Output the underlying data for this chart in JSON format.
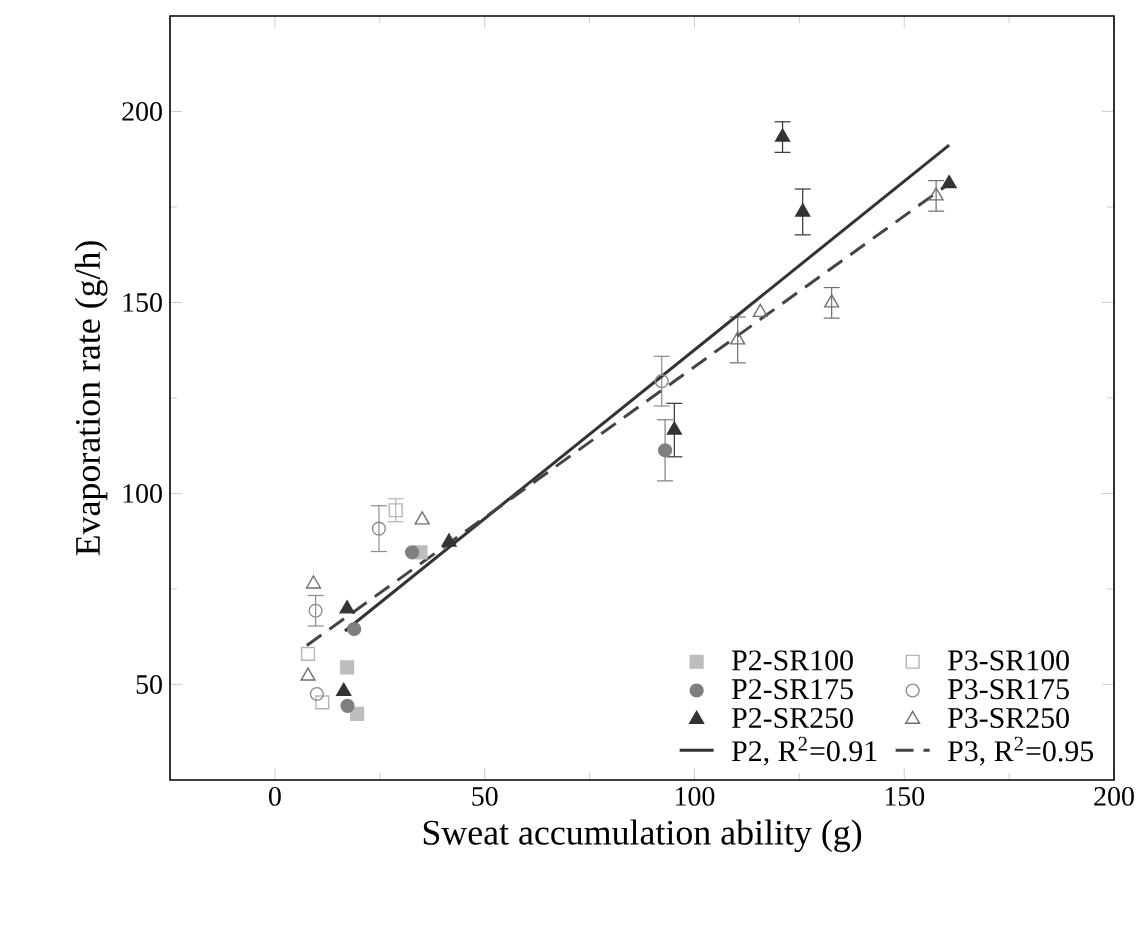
{
  "chart_data": {
    "type": "scatter",
    "xlabel": "Sweat accumulation ability (g)",
    "ylabel": "Evaporation rate (g/h)",
    "xlim": [
      -25,
      200
    ],
    "ylim": [
      25,
      225
    ],
    "xticks": [
      0,
      50,
      100,
      150,
      200
    ],
    "yticks": [
      50,
      100,
      150,
      200
    ],
    "grid": false,
    "legend": "bottom right",
    "series": [
      {
        "name": "P2-SR100",
        "color": "#bdbdbd",
        "marker": "square",
        "x": [
          17.2,
          19.6,
          34.7
        ],
        "values": [
          54.5,
          42.3,
          84.6
        ]
      },
      {
        "name": "P3-SR100",
        "color": "#b5b5b5",
        "marker": "square-open",
        "x": [
          7.9,
          11.3,
          28.8
        ],
        "values": [
          58.0,
          45.3,
          95.6
        ],
        "errors": [
          null,
          null,
          3
        ]
      },
      {
        "name": "P2-SR175",
        "color": "#7f7f7f",
        "marker": "circle",
        "x": [
          17.3,
          18.9,
          32.7,
          93.0
        ],
        "values": [
          44.4,
          64.5,
          84.6,
          111.3
        ],
        "errors": [
          null,
          null,
          null,
          8
        ]
      },
      {
        "name": "P3-SR175",
        "color": "#8c8c8c",
        "marker": "circle-open",
        "x": [
          10.0,
          9.7,
          24.8,
          92.2
        ],
        "values": [
          47.5,
          69.3,
          90.8,
          129.4
        ],
        "errors": [
          null,
          4,
          6,
          6.5
        ]
      },
      {
        "name": "P2-SR250",
        "color": "#333333",
        "marker": "triangle",
        "x": [
          16.4,
          17.2,
          41.5,
          95.2,
          121.0,
          125.8,
          160.7
        ],
        "values": [
          48.2,
          69.8,
          87.3,
          116.6,
          193.3,
          173.7,
          181.1
        ],
        "errors": [
          null,
          null,
          null,
          7,
          4,
          6,
          null
        ]
      },
      {
        "name": "P3-SR250",
        "color": "#6f6f6f",
        "marker": "triangle-open",
        "x": [
          7.9,
          9.2,
          35.1,
          110.3,
          115.7,
          132.7,
          157.6
        ],
        "values": [
          52.2,
          76.3,
          93.1,
          140.2,
          147.4,
          149.9,
          177.9
        ],
        "errors": [
          null,
          null,
          null,
          6,
          null,
          4,
          4
        ]
      },
      {
        "name": "P2, R$^{2}$=0.91",
        "type": "line",
        "color": "#333333",
        "line_style": "solid",
        "marker": "none",
        "x": [
          16.7,
          160.7
        ],
        "values": [
          64.0,
          191.2
        ]
      },
      {
        "name": "P3, R$^{2}$=0.95",
        "type": "line",
        "color": "#444444",
        "line_style": "dashed",
        "marker": "none",
        "x": [
          7.6,
          160.7
        ],
        "values": [
          60.2,
          181.1
        ]
      }
    ]
  }
}
